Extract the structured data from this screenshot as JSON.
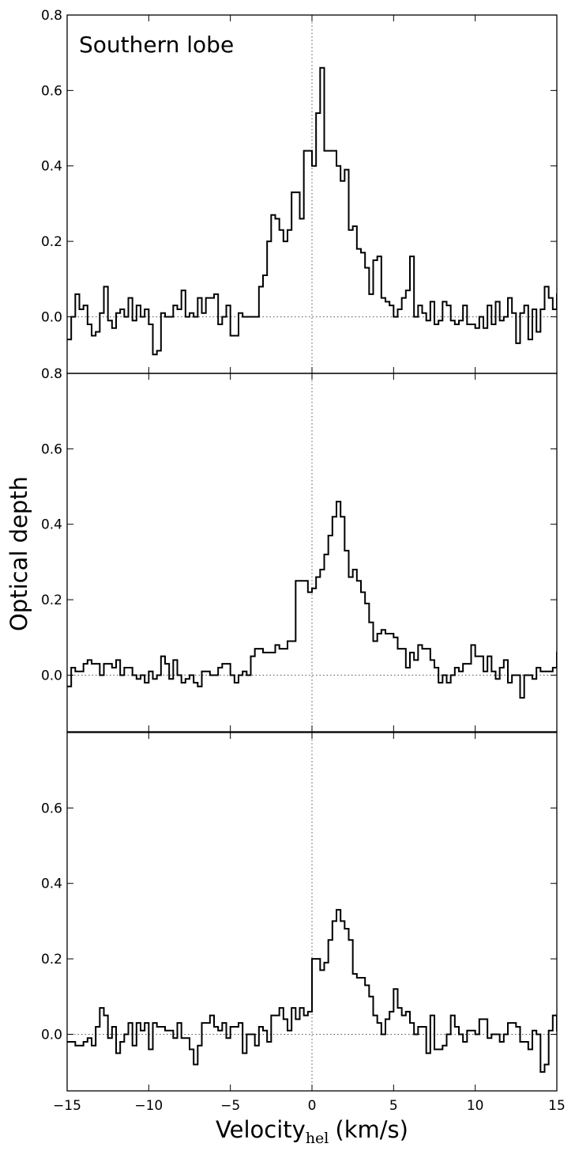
{
  "chart_data": {
    "type": "line",
    "style": "step",
    "layout": "three vertically stacked panels sharing the x axis",
    "xlabel_main": "Velocity",
    "xlabel_subscript": "hel",
    "xlabel_unit": "(km/s)",
    "ylabel": "Optical depth",
    "xlim": [
      -15,
      15
    ],
    "x_ticks": [
      -15,
      -10,
      -5,
      0,
      5,
      10,
      15
    ],
    "x_tick_labels": [
      "−15",
      "−10",
      "−5",
      "0",
      "5",
      "10",
      "15"
    ],
    "colors": {
      "line": "#000000",
      "reference": "#555555",
      "frame": "#000000"
    },
    "reference_lines": {
      "x": 0,
      "y": 0,
      "style": "dotted"
    },
    "grid": false,
    "panels": [
      {
        "title": "Southern lobe",
        "ylim": [
          -0.15,
          0.8
        ],
        "y_ticks": [
          0.0,
          0.2,
          0.4,
          0.6,
          0.8
        ],
        "y_tick_labels": [
          "0.0",
          "0.2",
          "0.4",
          "0.6",
          "0.8"
        ],
        "bin_width": 0.25,
        "x_start": -15,
        "values": [
          -0.06,
          0.0,
          0.06,
          0.02,
          0.03,
          -0.02,
          -0.05,
          -0.04,
          0.01,
          0.08,
          -0.01,
          -0.03,
          0.01,
          0.02,
          0.0,
          0.05,
          -0.01,
          0.03,
          0.0,
          0.02,
          -0.02,
          -0.1,
          -0.09,
          0.01,
          0.0,
          0.0,
          0.03,
          0.02,
          0.07,
          0.0,
          0.01,
          0.0,
          0.05,
          0.01,
          0.05,
          0.05,
          0.06,
          -0.02,
          0.0,
          0.03,
          -0.05,
          -0.05,
          0.01,
          0.0,
          0.0,
          0.0,
          0.0,
          0.08,
          0.11,
          0.2,
          0.27,
          0.26,
          0.23,
          0.2,
          0.23,
          0.33,
          0.33,
          0.26,
          0.44,
          0.44,
          0.4,
          0.54,
          0.66,
          0.44,
          0.44,
          0.44,
          0.4,
          0.36,
          0.39,
          0.23,
          0.24,
          0.18,
          0.17,
          0.13,
          0.06,
          0.15,
          0.16,
          0.05,
          0.04,
          0.03,
          0.0,
          0.02,
          0.05,
          0.07,
          0.16,
          0.0,
          0.03,
          0.01,
          -0.01,
          0.04,
          -0.02,
          -0.01,
          0.04,
          0.03,
          -0.01,
          -0.02,
          -0.01,
          0.03,
          -0.02,
          -0.02,
          -0.03,
          0.0,
          -0.03,
          0.03,
          -0.02,
          0.04,
          -0.01,
          0.0,
          0.05,
          0.01,
          -0.07,
          0.01,
          0.03,
          -0.06,
          0.02,
          -0.04,
          0.02,
          0.08,
          0.05,
          0.02,
          0.06
        ]
      },
      {
        "title": "",
        "ylim": [
          -0.15,
          0.8
        ],
        "y_ticks": [
          0.0,
          0.2,
          0.4,
          0.6,
          0.8
        ],
        "y_tick_labels": [
          "0.0",
          "0.2",
          "0.4",
          "0.6",
          "0.8"
        ],
        "bin_width": 0.25,
        "x_start": -15,
        "values": [
          -0.03,
          0.02,
          0.01,
          0.01,
          0.03,
          0.04,
          0.03,
          0.03,
          0.0,
          0.03,
          0.03,
          0.02,
          0.04,
          0.0,
          0.02,
          0.02,
          0.0,
          -0.01,
          0.0,
          -0.02,
          0.01,
          -0.01,
          0.0,
          0.05,
          0.03,
          -0.01,
          0.04,
          0.0,
          -0.02,
          -0.01,
          0.0,
          -0.02,
          -0.03,
          0.01,
          0.01,
          0.0,
          0.0,
          0.02,
          0.03,
          0.03,
          0.0,
          -0.02,
          0.0,
          0.01,
          0.0,
          0.05,
          0.07,
          0.07,
          0.06,
          0.06,
          0.06,
          0.08,
          0.07,
          0.07,
          0.09,
          0.09,
          0.25,
          0.25,
          0.25,
          0.22,
          0.23,
          0.26,
          0.28,
          0.32,
          0.37,
          0.42,
          0.46,
          0.42,
          0.33,
          0.26,
          0.28,
          0.25,
          0.22,
          0.19,
          0.14,
          0.09,
          0.11,
          0.12,
          0.11,
          0.11,
          0.1,
          0.07,
          0.07,
          0.02,
          0.06,
          0.04,
          0.08,
          0.07,
          0.07,
          0.04,
          0.02,
          -0.02,
          0.0,
          -0.02,
          0.0,
          0.02,
          0.01,
          0.03,
          0.03,
          0.08,
          0.05,
          0.05,
          0.01,
          0.05,
          0.01,
          -0.01,
          0.02,
          0.04,
          -0.02,
          0.0,
          0.0,
          -0.06,
          0.0,
          0.0,
          -0.01,
          0.02,
          0.01,
          0.01,
          0.01,
          0.02,
          0.06
        ]
      },
      {
        "title": "",
        "ylim": [
          -0.15,
          0.8
        ],
        "y_ticks": [
          0.0,
          0.2,
          0.4,
          0.6
        ],
        "y_tick_labels": [
          "0.0",
          "0.2",
          "0.4",
          "0.6"
        ],
        "bin_width": 0.25,
        "x_start": -15,
        "values": [
          -0.02,
          -0.02,
          -0.03,
          -0.03,
          -0.02,
          -0.01,
          -0.03,
          0.02,
          0.07,
          0.05,
          -0.01,
          0.02,
          -0.05,
          -0.02,
          0.0,
          0.03,
          -0.03,
          0.03,
          0.01,
          0.03,
          -0.04,
          0.03,
          0.02,
          0.02,
          0.01,
          0.01,
          -0.01,
          0.03,
          -0.01,
          -0.01,
          -0.04,
          -0.08,
          -0.03,
          0.03,
          0.03,
          0.05,
          0.02,
          0.01,
          0.03,
          -0.01,
          0.02,
          0.02,
          0.03,
          -0.05,
          0.0,
          0.0,
          -0.03,
          0.02,
          0.01,
          -0.02,
          0.05,
          0.05,
          0.07,
          0.04,
          0.01,
          0.07,
          0.04,
          0.07,
          0.05,
          0.06,
          0.2,
          0.2,
          0.17,
          0.19,
          0.25,
          0.3,
          0.33,
          0.3,
          0.28,
          0.25,
          0.16,
          0.15,
          0.15,
          0.13,
          0.1,
          0.05,
          0.03,
          0.0,
          0.04,
          0.06,
          0.12,
          0.07,
          0.05,
          0.06,
          0.03,
          0.0,
          0.02,
          0.02,
          -0.05,
          0.05,
          -0.04,
          -0.04,
          -0.03,
          0.0,
          0.05,
          0.02,
          0.0,
          -0.02,
          0.01,
          0.01,
          0.0,
          0.04,
          0.04,
          -0.01,
          0.0,
          0.0,
          -0.02,
          0.0,
          0.03,
          0.03,
          0.02,
          -0.02,
          -0.02,
          -0.04,
          0.01,
          0.0,
          -0.1,
          -0.08,
          0.01,
          0.05,
          0.01
        ]
      }
    ]
  }
}
